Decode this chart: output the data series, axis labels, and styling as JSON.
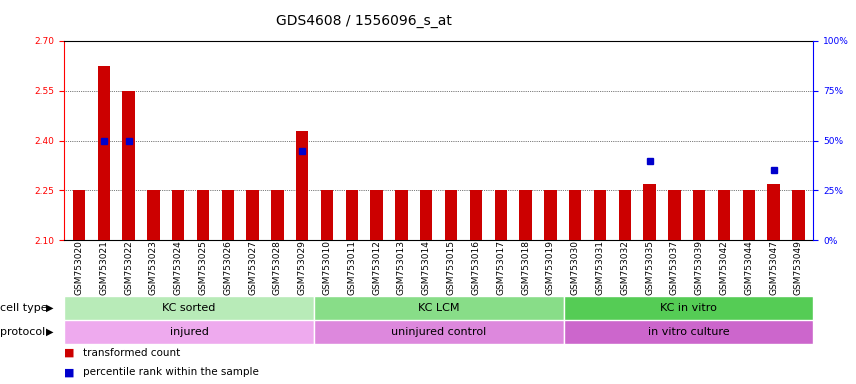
{
  "title": "GDS4608 / 1556096_s_at",
  "samples": [
    "GSM753020",
    "GSM753021",
    "GSM753022",
    "GSM753023",
    "GSM753024",
    "GSM753025",
    "GSM753026",
    "GSM753027",
    "GSM753028",
    "GSM753029",
    "GSM753010",
    "GSM753011",
    "GSM753012",
    "GSM753013",
    "GSM753014",
    "GSM753015",
    "GSM753016",
    "GSM753017",
    "GSM753018",
    "GSM753019",
    "GSM753030",
    "GSM753031",
    "GSM753032",
    "GSM753035",
    "GSM753037",
    "GSM753039",
    "GSM753042",
    "GSM753044",
    "GSM753047",
    "GSM753049"
  ],
  "red_values": [
    2.25,
    2.625,
    2.55,
    2.25,
    2.25,
    2.25,
    2.25,
    2.25,
    2.25,
    2.43,
    2.25,
    2.25,
    2.25,
    2.25,
    2.25,
    2.25,
    2.25,
    2.25,
    2.25,
    2.25,
    2.25,
    2.25,
    2.25,
    2.27,
    2.25,
    2.25,
    2.25,
    2.25,
    2.27,
    2.25
  ],
  "blue_values": [
    1,
    50,
    50,
    1,
    1,
    1,
    1,
    1,
    1,
    45,
    1,
    1,
    1,
    1,
    1,
    1,
    1,
    1,
    1,
    1,
    1,
    1,
    1,
    40,
    1,
    1,
    1,
    1,
    35,
    1
  ],
  "blue_threshold": 10,
  "ylim_left": [
    2.1,
    2.7
  ],
  "ylim_right": [
    0,
    100
  ],
  "yticks_left": [
    2.1,
    2.25,
    2.4,
    2.55,
    2.7
  ],
  "yticks_right": [
    0,
    25,
    50,
    75,
    100
  ],
  "bar_color": "#cc0000",
  "dot_color": "#0000cc",
  "baseline": 2.1,
  "cell_type_groups": [
    {
      "label": "KC sorted",
      "start": 0,
      "end": 9
    },
    {
      "label": "KC LCM",
      "start": 10,
      "end": 19
    },
    {
      "label": "KC in vitro",
      "start": 20,
      "end": 29
    }
  ],
  "cell_type_colors": [
    "#b8ebb8",
    "#88dd88",
    "#55cc55"
  ],
  "protocol_groups": [
    {
      "label": "injured",
      "start": 0,
      "end": 9
    },
    {
      "label": "uninjured control",
      "start": 10,
      "end": 19
    },
    {
      "label": "in vitro culture",
      "start": 20,
      "end": 29
    }
  ],
  "protocol_colors": [
    "#eeaaee",
    "#dd88dd",
    "#cc66cc"
  ],
  "cell_type_label": "cell type",
  "protocol_label": "protocol",
  "legend_red": "transformed count",
  "legend_blue": "percentile rank within the sample",
  "bar_width": 0.5,
  "title_fontsize": 10,
  "tick_fontsize": 6.5,
  "band_fontsize": 8,
  "label_fontsize": 8
}
